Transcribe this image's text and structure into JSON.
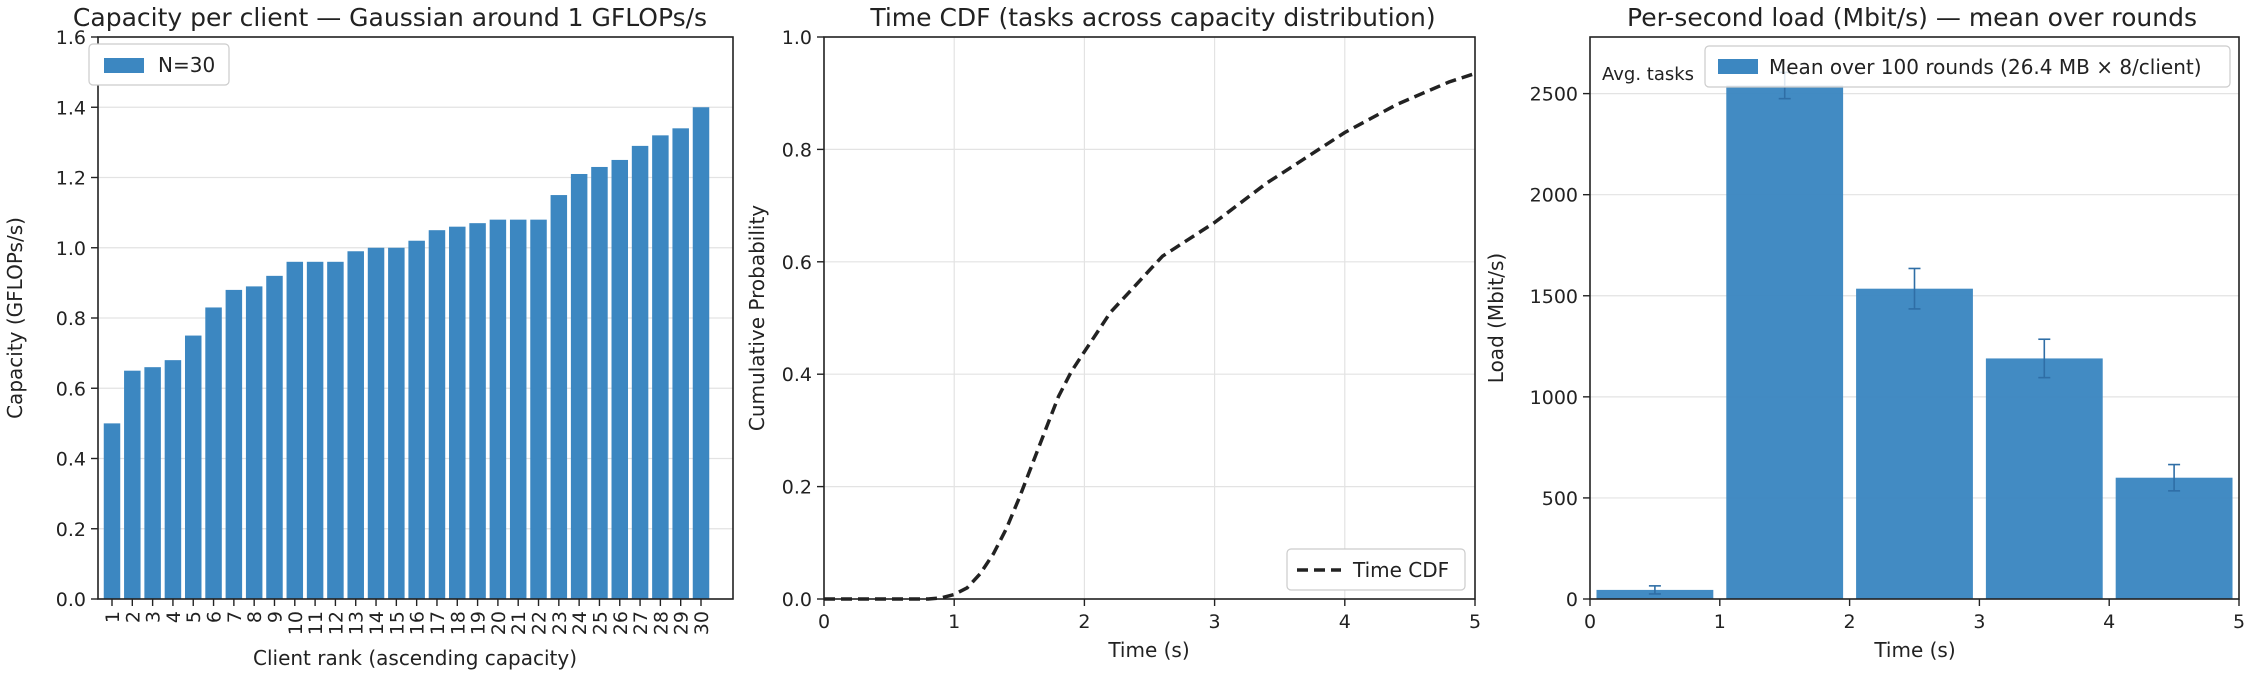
{
  "chart_data": [
    {
      "type": "bar",
      "title": "Capacity per client — Gaussian around 1 GFLOPs/s",
      "xlabel": "Client rank (ascending capacity)",
      "ylabel": "Capacity (GFLOPs/s)",
      "ylim": [
        0,
        1.6
      ],
      "yticks": [
        "0.0",
        "0.2",
        "0.4",
        "0.6",
        "0.8",
        "1.0",
        "1.2",
        "1.4",
        "1.6"
      ],
      "categories": [
        "1",
        "2",
        "3",
        "4",
        "5",
        "6",
        "7",
        "8",
        "9",
        "10",
        "11",
        "12",
        "13",
        "14",
        "15",
        "16",
        "17",
        "18",
        "19",
        "20",
        "21",
        "22",
        "23",
        "24",
        "25",
        "26",
        "27",
        "28",
        "29",
        "30"
      ],
      "values": [
        0.5,
        0.65,
        0.66,
        0.68,
        0.75,
        0.83,
        0.88,
        0.89,
        0.92,
        0.96,
        0.96,
        0.96,
        0.99,
        1.0,
        1.0,
        1.02,
        1.05,
        1.06,
        1.07,
        1.08,
        1.08,
        1.08,
        1.15,
        1.21,
        1.23,
        1.25,
        1.29,
        1.32,
        1.34,
        1.4
      ],
      "legend": [
        "N=30"
      ],
      "legend_position": "upper-left",
      "grid": "y",
      "color": "#3c87c1"
    },
    {
      "type": "line",
      "title": "Time CDF (tasks across capacity distribution)",
      "xlabel": "Time (s)",
      "ylabel": "Cumulative Probability",
      "xlim": [
        0,
        5
      ],
      "ylim": [
        0,
        1.0
      ],
      "xticks": [
        "0",
        "1",
        "2",
        "3",
        "4",
        "5"
      ],
      "yticks": [
        "0.0",
        "0.2",
        "0.4",
        "0.6",
        "0.8",
        "1.0"
      ],
      "series": [
        {
          "name": "Time CDF",
          "style": "dashed",
          "x": [
            0.0,
            0.8,
            0.9,
            1.0,
            1.1,
            1.2,
            1.3,
            1.4,
            1.5,
            1.6,
            1.7,
            1.8,
            1.9,
            2.0,
            2.1,
            2.2,
            2.3,
            2.4,
            2.5,
            2.6,
            2.7,
            2.8,
            2.9,
            3.0,
            3.2,
            3.4,
            3.6,
            3.8,
            4.0,
            4.2,
            4.4,
            4.6,
            4.8,
            5.0
          ],
          "y": [
            0.0,
            0.0,
            0.002,
            0.008,
            0.02,
            0.045,
            0.08,
            0.125,
            0.18,
            0.24,
            0.3,
            0.36,
            0.405,
            0.44,
            0.475,
            0.51,
            0.535,
            0.56,
            0.585,
            0.61,
            0.625,
            0.64,
            0.655,
            0.67,
            0.705,
            0.74,
            0.77,
            0.8,
            0.83,
            0.855,
            0.88,
            0.9,
            0.92,
            0.935
          ]
        }
      ],
      "legend_position": "lower-right",
      "grid": "both"
    },
    {
      "type": "bar",
      "title": "Per-second load (Mbit/s) — mean over rounds",
      "xlabel": "Time (s)",
      "ylabel": "Load (Mbit/s)",
      "xlim": [
        0,
        5
      ],
      "ylim": [
        0,
        2780
      ],
      "xticks": [
        "0",
        "1",
        "2",
        "3",
        "4",
        "5"
      ],
      "yticks": [
        "0",
        "500",
        "1000",
        "1500",
        "2000",
        "2500"
      ],
      "bins": [
        [
          0,
          1
        ],
        [
          1,
          2
        ],
        [
          2,
          3
        ],
        [
          3,
          4
        ],
        [
          4,
          5
        ]
      ],
      "values": [
        45,
        2540,
        1535,
        1190,
        600
      ],
      "errors": [
        20,
        65,
        100,
        95,
        65
      ],
      "legend": [
        "Mean over 100 rounds (26.4 MB × 8/client)"
      ],
      "legend_position": "upper-right",
      "annotation": "Avg. tasks",
      "grid": "y",
      "color": "#3c87c1"
    }
  ]
}
